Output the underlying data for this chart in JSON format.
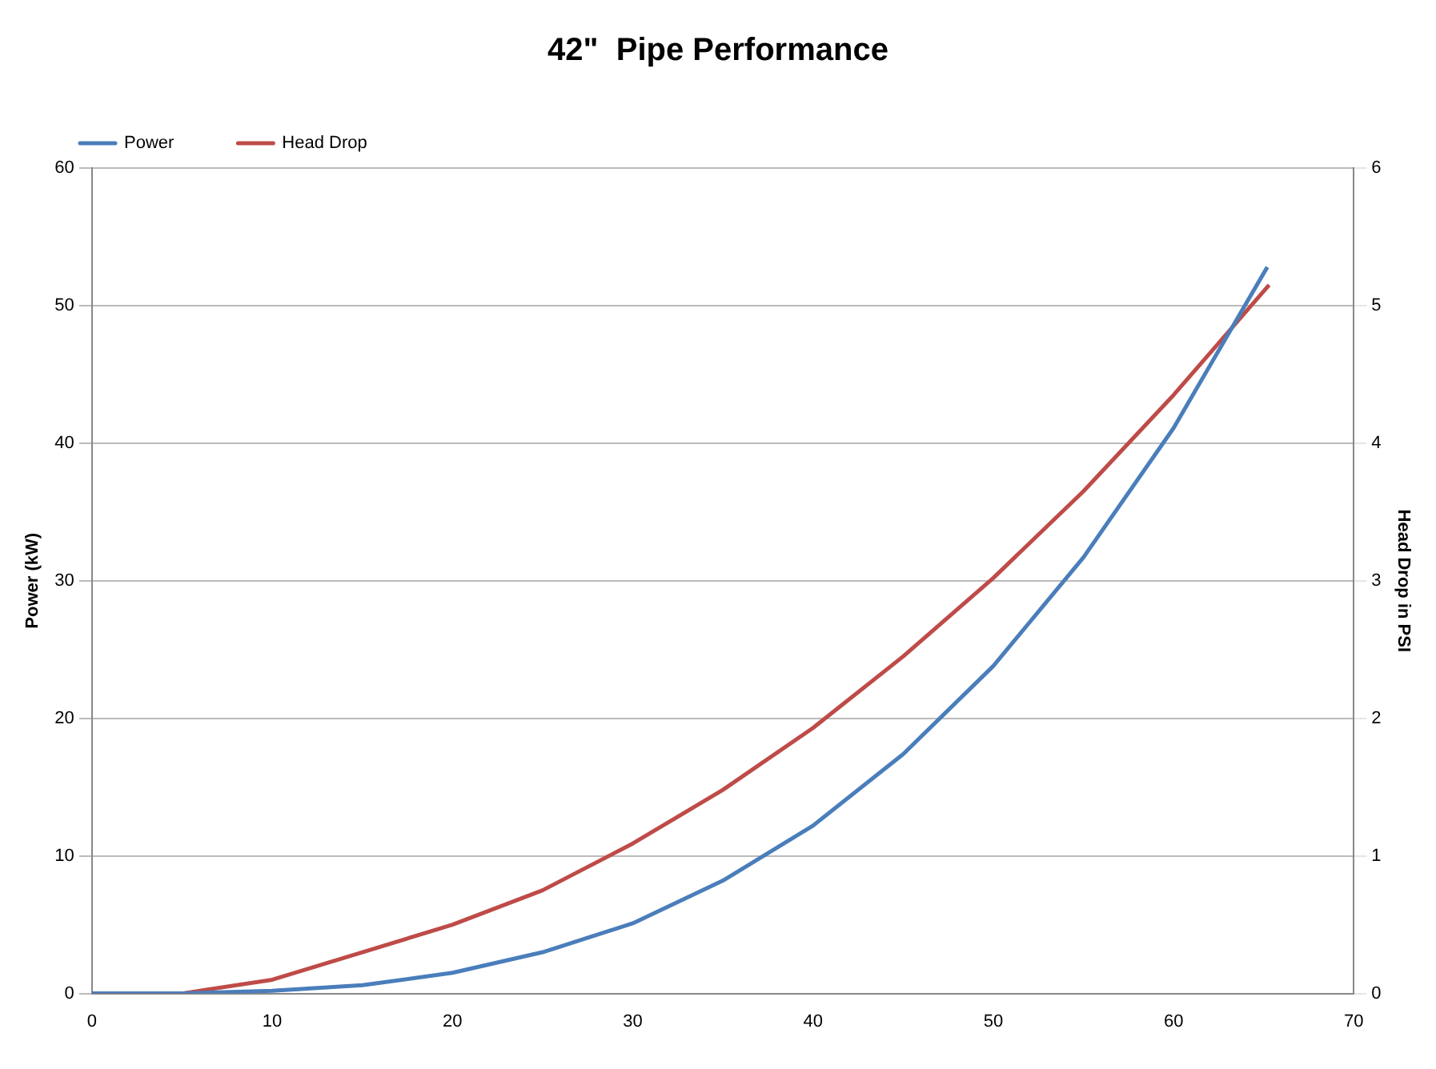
{
  "chart_data": {
    "type": "line",
    "title": "42\"  Pipe Performance",
    "ylabel": "Power (kW)",
    "y2label": "Head Drop in PSI",
    "series": [
      {
        "name": "Power",
        "color": "#4a7ebb",
        "x": [
          0,
          5,
          10,
          15,
          20,
          25,
          30,
          35,
          40,
          45,
          50,
          55,
          60,
          65.2
        ],
        "values": [
          0,
          0,
          0.2,
          0.6,
          1.5,
          3.0,
          5.1,
          8.2,
          12.2,
          17.4,
          23.8,
          31.7,
          41.1,
          52.8
        ]
      },
      {
        "name": "Head Drop",
        "color": "#be4b48",
        "axis": "y2",
        "x": [
          0,
          5,
          10,
          15,
          20,
          25,
          30,
          35,
          40,
          45,
          50,
          55,
          60,
          65.3
        ],
        "values": [
          0,
          0,
          0.1,
          0.3,
          0.5,
          0.75,
          1.09,
          1.48,
          1.93,
          2.45,
          3.02,
          3.65,
          4.35,
          5.15
        ]
      }
    ],
    "xlim": [
      0,
      70
    ],
    "xticks": [
      0,
      10,
      20,
      30,
      40,
      50,
      60,
      70
    ],
    "ylim": [
      0,
      60
    ],
    "yticks": [
      0,
      10,
      20,
      30,
      40,
      50,
      60
    ],
    "y2lim": [
      0,
      6
    ],
    "y2ticks": [
      0,
      1,
      2,
      3,
      4,
      5,
      6
    ],
    "grid": "y",
    "legend": "top left",
    "marker": "none",
    "line_style": "solid"
  }
}
